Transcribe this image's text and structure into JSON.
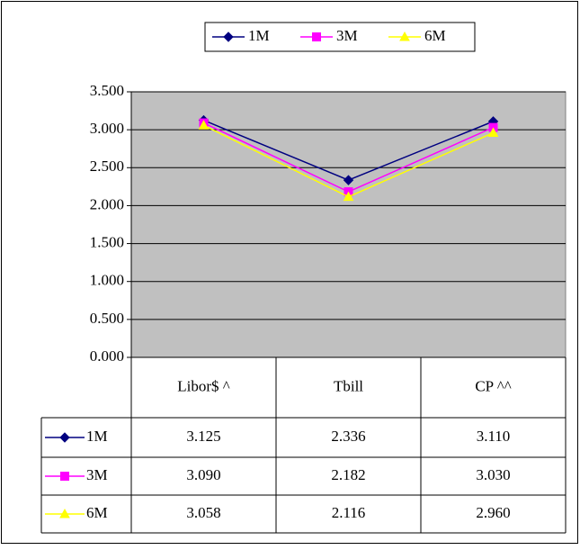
{
  "chart_data": {
    "type": "line",
    "categories": [
      "Libor$ ^",
      "Tbill",
      "CP ^^"
    ],
    "series": [
      {
        "name": "1M",
        "color": "#000080",
        "marker": "diamond",
        "values": [
          3.125,
          2.336,
          3.11
        ],
        "value_labels": [
          "3.125",
          "2.336",
          "3.110"
        ]
      },
      {
        "name": "3M",
        "color": "#ff00ff",
        "marker": "square",
        "values": [
          3.09,
          2.182,
          3.03
        ],
        "value_labels": [
          "3.090",
          "2.182",
          "3.030"
        ]
      },
      {
        "name": "6M",
        "color": "#ffff00",
        "marker": "triangle",
        "values": [
          3.058,
          2.116,
          2.96
        ],
        "value_labels": [
          "3.058",
          "2.116",
          "2.960"
        ]
      }
    ],
    "ylim": [
      0,
      3.5
    ],
    "yticks": [
      {
        "value": 0,
        "label": "0.000"
      },
      {
        "value": 0.5,
        "label": "0.500"
      },
      {
        "value": 1,
        "label": "1.000"
      },
      {
        "value": 1.5,
        "label": "1.500"
      },
      {
        "value": 2,
        "label": "2.000"
      },
      {
        "value": 2.5,
        "label": "2.500"
      },
      {
        "value": 3,
        "label": "3.000"
      },
      {
        "value": 3.5,
        "label": "3.500"
      }
    ],
    "grid": true,
    "plot_background": "#c0c0c0",
    "legend": "top",
    "data_table": true
  }
}
